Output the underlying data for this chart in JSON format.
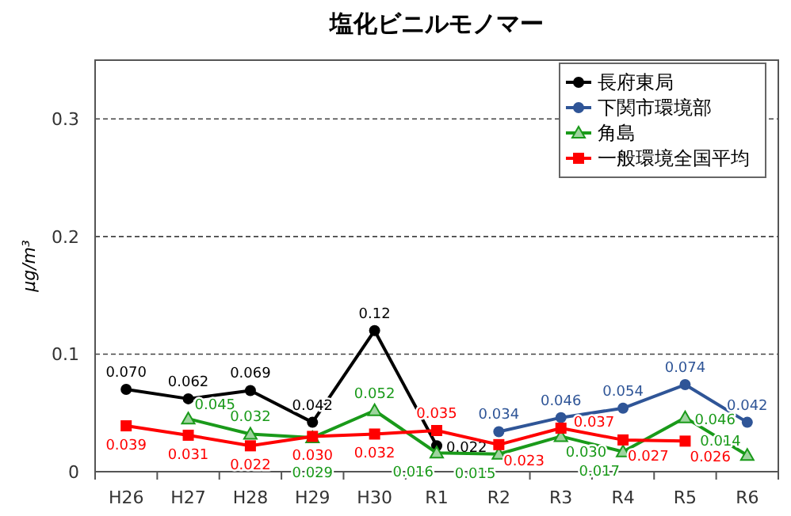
{
  "chart_data": {
    "type": "line",
    "title": "塩化ビニルモノマー",
    "ylabel": "μg/m³",
    "categories": [
      "H26",
      "H27",
      "H28",
      "H29",
      "H30",
      "R1",
      "R2",
      "R3",
      "R4",
      "R5",
      "R6"
    ],
    "ylim": [
      0,
      0.35
    ],
    "yticks": [
      0,
      0.1,
      0.2,
      0.3
    ],
    "grid": "y",
    "legend": "top right",
    "data_labels": true,
    "series": [
      {
        "name": "長府東局",
        "color": "#000000",
        "marker": "circle",
        "values": [
          0.07,
          0.062,
          0.069,
          0.042,
          0.12,
          0.022,
          null,
          null,
          null,
          null,
          null
        ],
        "value_labels": [
          "0.070",
          "0.062",
          "0.069",
          "0.042",
          "0.12",
          "0.022",
          null,
          null,
          null,
          null,
          null
        ]
      },
      {
        "name": "下関市環境部",
        "color": "#2f5597",
        "marker": "circle",
        "values": [
          null,
          null,
          null,
          null,
          null,
          null,
          0.034,
          0.046,
          0.054,
          0.074,
          0.042
        ],
        "value_labels": [
          null,
          null,
          null,
          null,
          null,
          null,
          "0.034",
          "0.046",
          "0.054",
          "0.074",
          "0.042"
        ]
      },
      {
        "name": "角島",
        "color": "#1a9a1a",
        "marker": "triangle",
        "values": [
          null,
          0.045,
          0.032,
          0.029,
          0.052,
          0.016,
          0.015,
          0.03,
          0.017,
          0.046,
          0.014
        ],
        "value_labels": [
          null,
          "0.045",
          "0.032",
          "0.029",
          "0.052",
          "0.016",
          "0.015",
          "0.030",
          "0.017",
          "0.046",
          "0.014"
        ]
      },
      {
        "name": "一般環境全国平均",
        "color": "#ff0000",
        "marker": "square",
        "values": [
          0.039,
          0.031,
          0.022,
          0.03,
          0.032,
          0.035,
          0.023,
          0.037,
          0.027,
          0.026,
          null
        ],
        "value_labels": [
          "0.039",
          "0.031",
          "0.022",
          "0.030",
          "0.032",
          "0.035",
          "0.023",
          "0.037",
          "0.027",
          "0.026",
          null
        ]
      }
    ]
  }
}
